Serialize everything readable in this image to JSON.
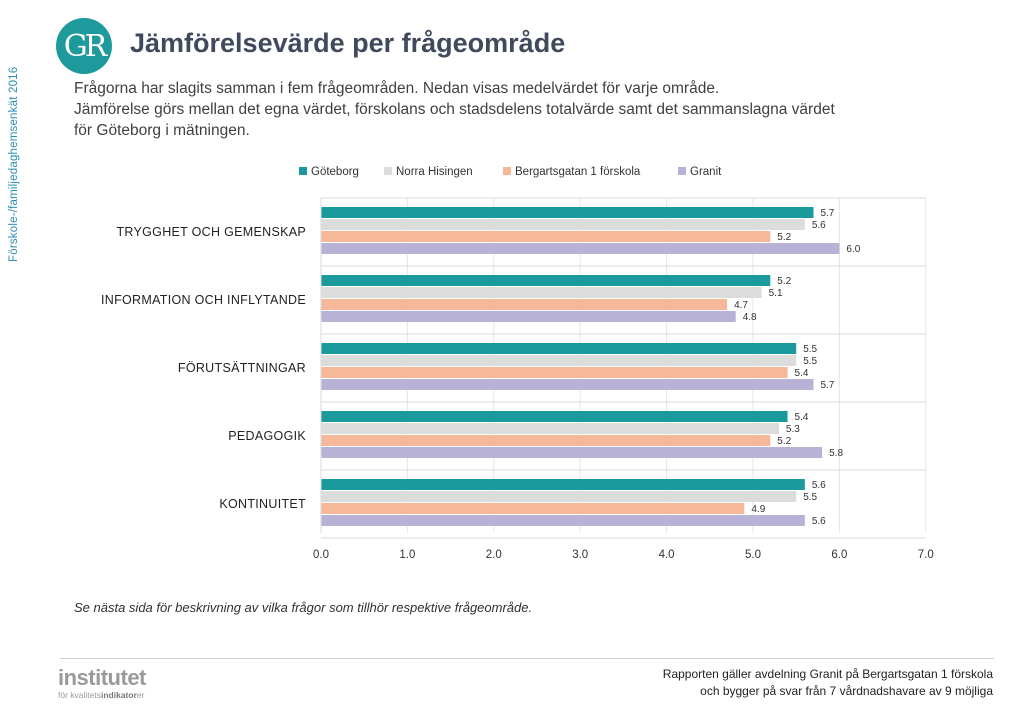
{
  "side_label": "Förskole-/familjedaghemsenkät 2016",
  "logo": {
    "text": "GR"
  },
  "title": "Jämförelsevärde per frågeområde",
  "intro": {
    "line1": "Frågorna har slagits samman i fem frågeområden. Nedan visas medelvärdet för varje område.",
    "line2": "Jämförelse görs mellan det egna värdet, förskolans och stadsdelens totalvärde samt det sammanslagna värdet",
    "line3": "för Göteborg i mätningen."
  },
  "chart_data": {
    "type": "bar",
    "orientation": "horizontal",
    "title": "",
    "xlabel": "",
    "ylabel": "",
    "xlim": [
      0,
      7
    ],
    "ticks": [
      0,
      1,
      2,
      3,
      4,
      5,
      6,
      7
    ],
    "tick_labels": [
      "0.0",
      "1.0",
      "2.0",
      "3.0",
      "4.0",
      "5.0",
      "6.0",
      "7.0"
    ],
    "grid": true,
    "legend_position": "top",
    "categories": [
      "TRYGGHET OCH GEMENSKAP",
      "INFORMATION OCH INFLYTANDE",
      "FÖRUTSÄTTNINGAR",
      "PEDAGOGIK",
      "KONTINUITET"
    ],
    "series": [
      {
        "name": "Göteborg",
        "color": "#1a9a9c",
        "values": [
          5.7,
          5.2,
          5.5,
          5.4,
          5.6
        ]
      },
      {
        "name": "Norra Hisingen",
        "color": "#dcdcdc",
        "values": [
          5.6,
          5.1,
          5.5,
          5.3,
          5.5
        ]
      },
      {
        "name": "Bergartsgatan 1 förskola",
        "color": "#f7b89a",
        "values": [
          5.2,
          4.7,
          5.4,
          5.2,
          4.9
        ]
      },
      {
        "name": "Granit",
        "color": "#b7b2d6",
        "values": [
          6.0,
          4.8,
          5.7,
          5.8,
          5.6
        ]
      }
    ]
  },
  "footnote": "Se nästa sida för beskrivning av vilka frågor som tillhör respektive frågeområde.",
  "brand": {
    "word": "institutet",
    "sub_prefix": "för kvalitets",
    "sub_bold": "indikator",
    "sub_suffix": "er"
  },
  "footer": {
    "line1": "Rapporten gäller avdelning Granit  på Bergartsgatan 1 förskola",
    "line2": "och bygger på svar från 7 vårdnadshavare av 9 möjliga"
  }
}
